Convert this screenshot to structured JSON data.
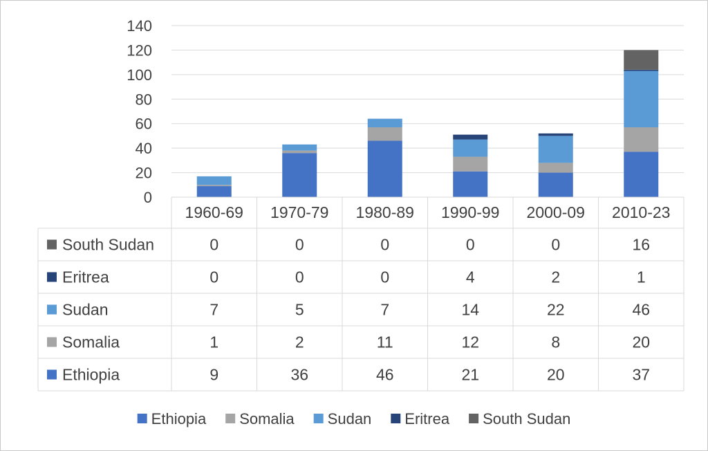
{
  "chart_data": {
    "type": "bar",
    "stacked": true,
    "categories": [
      "1960-69",
      "1970-79",
      "1980-89",
      "1990-99",
      "2000-09",
      "2010-23"
    ],
    "series": [
      {
        "name": "Ethiopia",
        "color": "#4472c4",
        "values": [
          9,
          36,
          46,
          21,
          20,
          37
        ]
      },
      {
        "name": "Somalia",
        "color": "#a5a5a5",
        "values": [
          1,
          2,
          11,
          12,
          8,
          20
        ]
      },
      {
        "name": "Sudan",
        "color": "#5b9bd5",
        "values": [
          7,
          5,
          7,
          14,
          22,
          46
        ]
      },
      {
        "name": "Eritrea",
        "color": "#264478",
        "values": [
          0,
          0,
          0,
          4,
          2,
          1
        ]
      },
      {
        "name": "South Sudan",
        "color": "#636363",
        "values": [
          0,
          0,
          0,
          0,
          0,
          16
        ]
      }
    ],
    "ylim": [
      0,
      140
    ],
    "yticks": [
      0,
      20,
      40,
      60,
      80,
      100,
      120,
      140
    ],
    "grid": true,
    "data_table": true,
    "legend_position": "bottom"
  }
}
